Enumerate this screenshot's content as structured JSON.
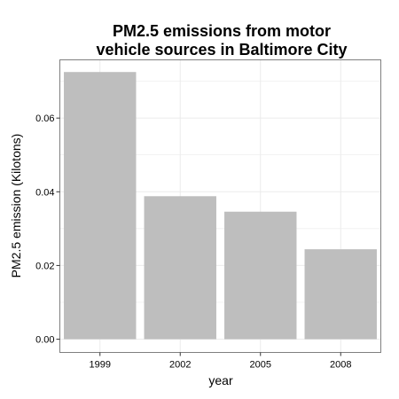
{
  "chart_data": {
    "type": "bar",
    "title": [
      "PM2.5 emissions from motor",
      "vehicle sources in Baltimore City"
    ],
    "xlabel": "year",
    "ylabel": "PM2.5 emission (Kilotons)",
    "categories": [
      "1999",
      "2002",
      "2005",
      "2008"
    ],
    "values": [
      0.0725,
      0.0388,
      0.0346,
      0.0244
    ],
    "ylim": [
      -0.0036,
      0.0758
    ],
    "yticks": [
      0.0,
      0.02,
      0.04,
      0.06
    ],
    "ytick_labels": [
      "0.00",
      "0.02",
      "0.04",
      "0.06"
    ],
    "grid": true,
    "legend": "none",
    "colors": {
      "bar": "#bebebe",
      "grid": "#ebebeb",
      "panel_border": "#7f7f7f",
      "axis_tick": "#333333"
    }
  }
}
